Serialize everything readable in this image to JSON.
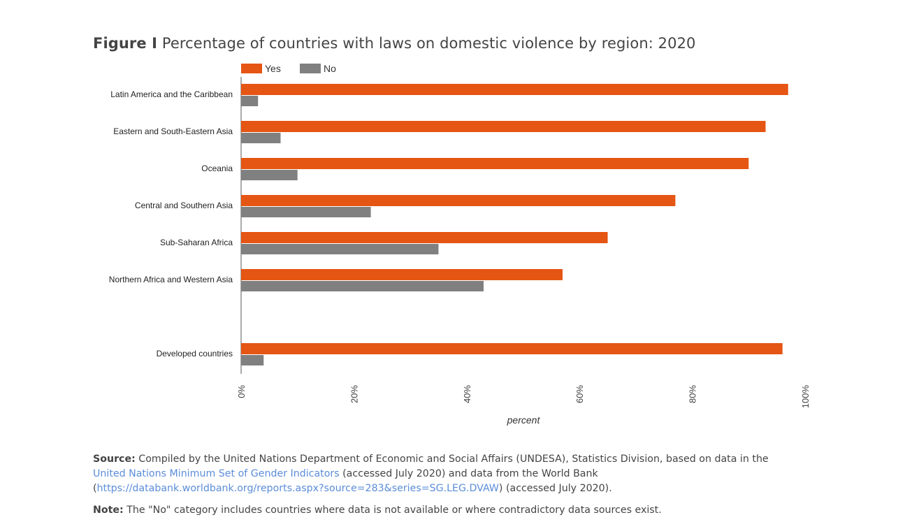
{
  "title": {
    "label": "Figure I",
    "text": "Percentage of countries with laws on domestic violence by region: 2020"
  },
  "colors": {
    "yes": "#e55513",
    "no": "#808080",
    "axis": "#555555"
  },
  "chart_data": {
    "type": "bar",
    "orientation": "horizontal",
    "categories": [
      "Latin America and the Caribbean",
      "Eastern and South-Eastern Asia",
      "Oceania",
      "Central and Southern Asia",
      "Sub-Saharan Africa",
      "Northern Africa and Western Asia",
      "",
      "Developed countries"
    ],
    "series": [
      {
        "name": "Yes",
        "values": [
          97,
          93,
          90,
          77,
          65,
          57,
          null,
          96
        ]
      },
      {
        "name": "No",
        "values": [
          3,
          7,
          10,
          23,
          35,
          43,
          null,
          4
        ]
      }
    ],
    "xlabel": "percent",
    "xlim": [
      0,
      100
    ],
    "xticks": [
      "0%",
      "20%",
      "40%",
      "60%",
      "80%",
      "100%"
    ],
    "legend": "top-left",
    "grid": false
  },
  "footer": {
    "source_label": "Source:",
    "source_text_1": " Compiled by the United Nations Department of Economic and Social Affairs (UNDESA), Statistics Division, based on data in the ",
    "source_link_1": "United Nations Minimum Set of Gender Indicators",
    "source_text_2": " (accessed July 2020) and data from the World Bank (",
    "source_link_2": "https://databank.worldbank.org/reports.aspx?source=283&series=SG.LEG.DVAW",
    "source_text_3": ") (accessed July 2020).",
    "note_label": "Note:",
    "note_text": " The \"No\" category includes countries where data is not available or where contradictory data sources exist."
  }
}
